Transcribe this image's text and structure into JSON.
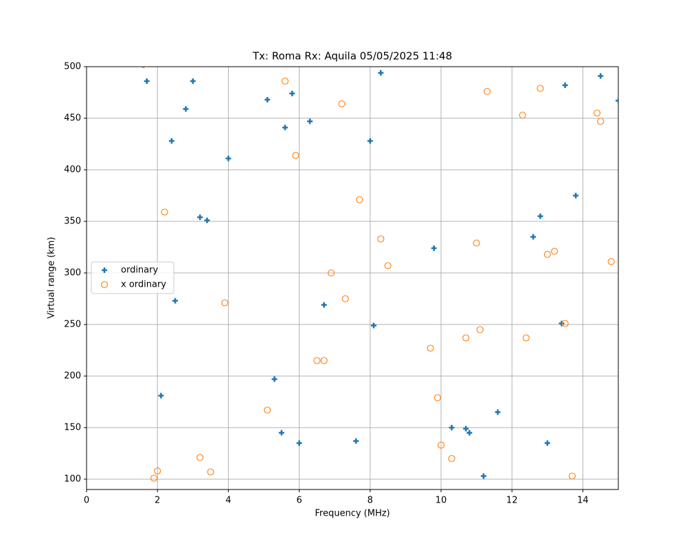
{
  "chart_data": {
    "type": "scatter",
    "title": "Tx: Roma Rx: Aquila 05/05/2025 11:48",
    "x_label": "Frequency (MHz)",
    "y_label": "Virtual range (km)",
    "xlim": [
      0,
      15
    ],
    "ylim": [
      90,
      500
    ],
    "xticks": [
      0,
      2,
      4,
      6,
      8,
      10,
      12,
      14
    ],
    "yticks": [
      100,
      150,
      200,
      250,
      300,
      350,
      400,
      450,
      500
    ],
    "grid": true,
    "legend": "center left",
    "series": [
      {
        "name": "ordinary",
        "color": "#1f77b4",
        "marker": "plus",
        "x": [
          1.7,
          3.0,
          2.8,
          2.4,
          4.0,
          3.2,
          3.4,
          2.5,
          2.1,
          5.1,
          5.8,
          5.6,
          6.3,
          8.3,
          8.0,
          6.7,
          8.1,
          5.3,
          5.5,
          6.0,
          7.6,
          9.8,
          10.3,
          10.7,
          10.8,
          11.6,
          11.2,
          12.6,
          12.8,
          13.8,
          13.5,
          14.5,
          15.0,
          13.4,
          13.0
        ],
        "values": [
          486,
          486,
          459,
          428,
          411,
          354,
          351,
          273,
          181,
          468,
          474,
          441,
          447,
          494,
          428,
          269,
          249,
          197,
          145,
          135,
          137,
          324,
          150,
          149,
          145,
          165,
          103,
          335,
          355,
          375,
          482,
          491,
          467,
          251,
          135
        ]
      },
      {
        "name": "x ordinary",
        "color": "#ff7f0e",
        "marker": "open-circle",
        "x": [
          1.6,
          2.2,
          2.0,
          1.9,
          3.2,
          3.5,
          3.9,
          5.6,
          5.9,
          7.2,
          7.7,
          8.3,
          8.5,
          6.9,
          7.3,
          6.5,
          6.7,
          5.1,
          9.7,
          9.9,
          10.0,
          10.3,
          11.0,
          11.3,
          11.1,
          10.7,
          12.3,
          12.8,
          12.4,
          13.0,
          13.2,
          13.5,
          13.7,
          14.4,
          14.5,
          14.8
        ],
        "values": [
          502,
          359,
          108,
          101,
          121,
          107,
          271,
          486,
          414,
          464,
          371,
          333,
          307,
          300,
          275,
          215,
          215,
          167,
          227,
          179,
          133,
          120,
          329,
          476,
          245,
          237,
          453,
          479,
          237,
          318,
          321,
          251,
          103,
          455,
          447,
          311
        ]
      }
    ]
  }
}
